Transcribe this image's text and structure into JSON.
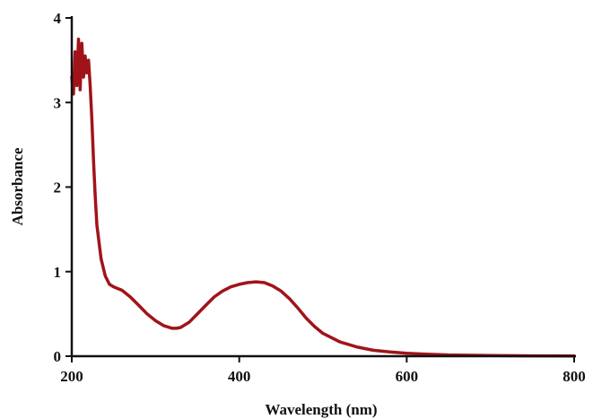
{
  "chart_data": {
    "type": "line",
    "title": "",
    "xlabel": "Wavelength (nm)",
    "ylabel": "Absorbance",
    "xlim": [
      200,
      800
    ],
    "ylim": [
      0,
      4
    ],
    "x_ticks": [
      200,
      400,
      600,
      800
    ],
    "y_ticks": [
      0,
      1,
      2,
      3,
      4
    ],
    "grid": false,
    "legend": "none",
    "series": [
      {
        "color": "#a01419",
        "x": [
          200,
          202,
          204,
          206,
          208,
          210,
          212,
          214,
          216,
          218,
          220,
          222,
          224,
          226,
          228,
          230,
          235,
          240,
          245,
          250,
          255,
          260,
          270,
          280,
          290,
          300,
          310,
          320,
          325,
          330,
          340,
          350,
          360,
          370,
          380,
          390,
          400,
          410,
          420,
          430,
          440,
          450,
          460,
          470,
          480,
          490,
          500,
          520,
          540,
          560,
          580,
          600,
          620,
          650,
          700,
          750,
          800
        ],
        "y": [
          3.3,
          3.1,
          3.6,
          3.2,
          3.75,
          3.15,
          3.7,
          3.3,
          3.55,
          3.35,
          3.5,
          3.2,
          2.8,
          2.3,
          1.9,
          1.55,
          1.15,
          0.95,
          0.85,
          0.82,
          0.8,
          0.78,
          0.7,
          0.6,
          0.5,
          0.42,
          0.36,
          0.33,
          0.33,
          0.34,
          0.4,
          0.5,
          0.6,
          0.7,
          0.77,
          0.82,
          0.85,
          0.87,
          0.88,
          0.87,
          0.83,
          0.77,
          0.68,
          0.57,
          0.45,
          0.35,
          0.27,
          0.17,
          0.11,
          0.07,
          0.05,
          0.035,
          0.025,
          0.015,
          0.008,
          0.004,
          0.002
        ]
      }
    ]
  }
}
